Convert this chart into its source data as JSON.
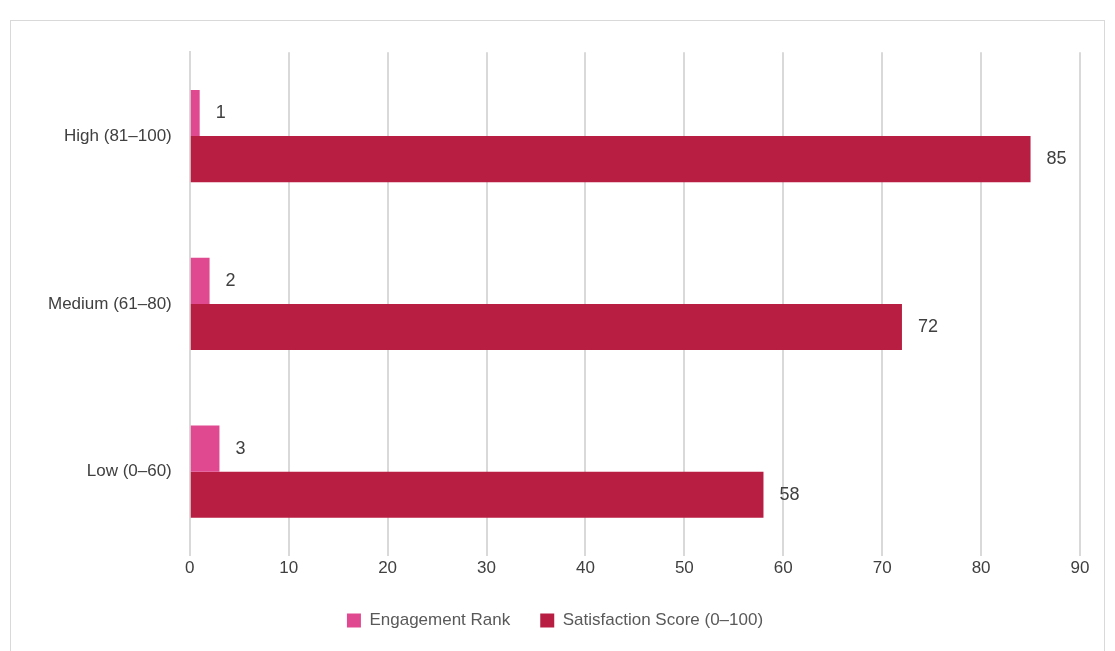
{
  "chart_data": {
    "type": "bar",
    "orientation": "horizontal",
    "categories": [
      "High (81–100)",
      "Medium (61–80)",
      "Low (0–60)"
    ],
    "series": [
      {
        "name": "Engagement Rank",
        "color": "#e0488f",
        "values": [
          1,
          2,
          3
        ]
      },
      {
        "name": "Satisfaction Score (0–100)",
        "color": "#b81e42",
        "values": [
          85,
          72,
          58
        ]
      }
    ],
    "xlim": [
      0,
      90
    ],
    "xticks": [
      0,
      10,
      20,
      30,
      40,
      50,
      60,
      70,
      80,
      90
    ],
    "grid": "x",
    "legend": "bottom",
    "data_labels": true
  }
}
